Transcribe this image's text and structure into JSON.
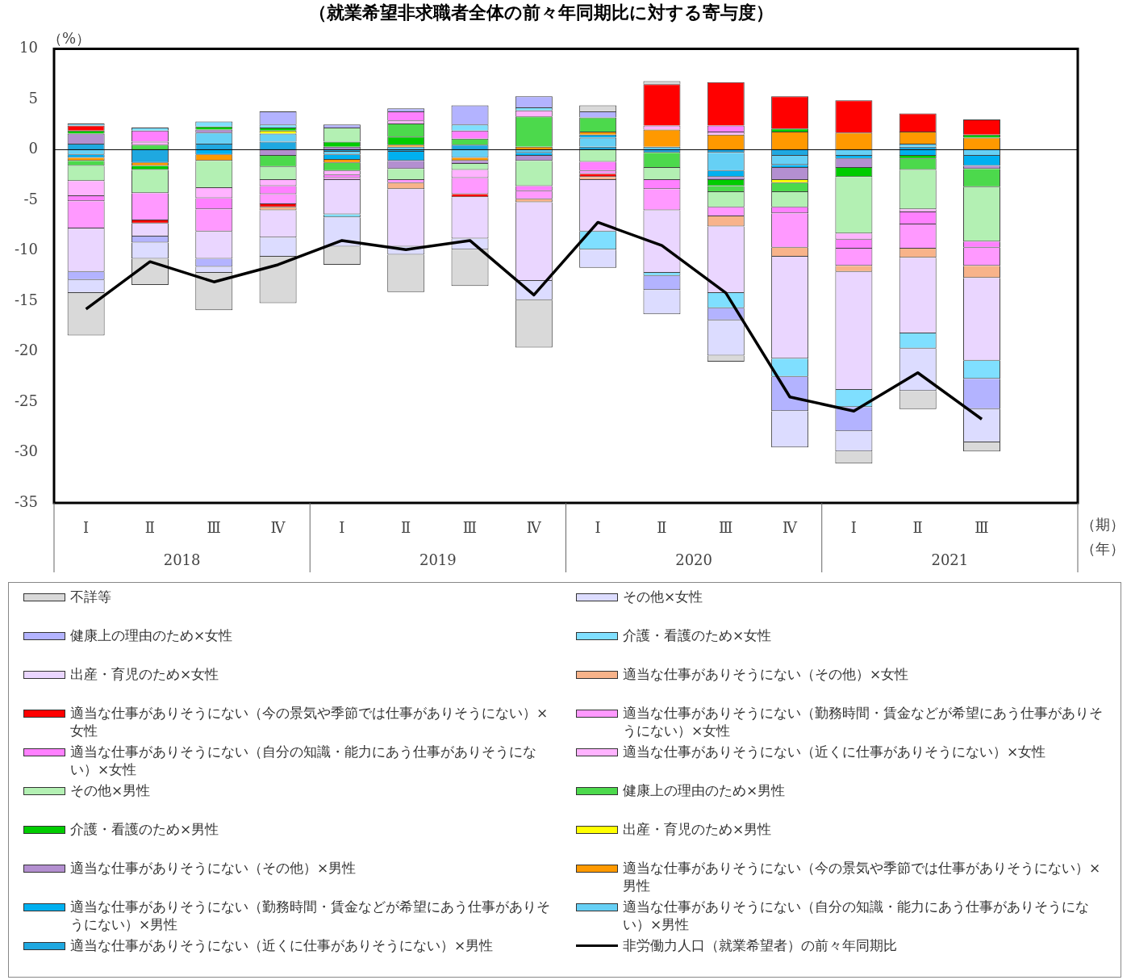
{
  "chart_data": {
    "type": "bar",
    "title": "（就業希望非求職者全体の前々年同期比に対する寄与度）",
    "ylabel": "（%）",
    "xlabel": "（期）（年）",
    "annotations": [
      "2018",
      "2019",
      "2020",
      "2021"
    ],
    "categories": [
      "Ⅰ",
      "Ⅱ",
      "Ⅲ",
      "Ⅳ",
      "Ⅰ",
      "Ⅱ",
      "Ⅲ",
      "Ⅳ",
      "Ⅰ",
      "Ⅱ",
      "Ⅲ",
      "Ⅳ",
      "Ⅰ",
      "Ⅱ",
      "Ⅲ",
      null
    ],
    "stacked": true,
    "ylim": [
      -35,
      10
    ],
    "yticks": [
      -35,
      -30,
      -25,
      -20,
      -15,
      -10,
      -5,
      0,
      5,
      10
    ],
    "grid": false,
    "legend": "bottom",
    "ref_lines": [
      {
        "axis": "y",
        "value": 0,
        "color": "#000000"
      }
    ],
    "series": [
      {
        "name": "適当な仕事がありそうにない（近くに仕事がありそうにない）×男性",
        "color": "#1fa8e0",
        "values": [
          0.6,
          -1.3,
          0.6,
          0.8,
          -0.2,
          -0.2,
          0.5,
          null,
          0.3,
          -0.3,
          -0.3,
          -0.6,
          null,
          0.3,
          null,
          null
        ]
      },
      {
        "name": "適当な仕事がありそうにない（自分の知識・能力にあう仕事がありそうにない）×男性",
        "color": "#66d0f5",
        "values": [
          -0.5,
          null,
          1.1,
          0.8,
          -0.3,
          0.3,
          -0.8,
          -0.3,
          0.9,
          0.3,
          -1.8,
          -0.9,
          -0.6,
          0.3,
          -0.6,
          null
        ]
      },
      {
        "name": "適当な仕事がありそうにない（勤務時間・賃金などが希望にあう仕事がありそうにない）×男性",
        "color": "#00b0f0",
        "values": [
          -0.3,
          null,
          -0.5,
          null,
          -0.5,
          -0.9,
          null,
          -0.3,
          0.3,
          null,
          -0.6,
          -0.3,
          -0.3,
          -0.6,
          -1.0,
          null
        ]
      },
      {
        "name": "適当な仕事がありそうにない（今の景気や季節では仕事がありそうにない）×男性",
        "color": "#ff9900",
        "values": [
          -0.3,
          -0.3,
          -0.6,
          null,
          -0.3,
          0.2,
          -0.3,
          0.3,
          0.3,
          1.7,
          1.5,
          1.8,
          1.7,
          1.2,
          1.2,
          null
        ]
      },
      {
        "name": "適当な仕事がありそうにない（その他）×男性",
        "color": "#b38fd0",
        "values": [
          1.0,
          null,
          0.3,
          -0.6,
          0.3,
          -0.8,
          -0.3,
          -0.5,
          null,
          null,
          -0.3,
          -1.2,
          -0.9,
          null,
          -0.3,
          null
        ]
      },
      {
        "name": "出産・育児のため×男性",
        "color": "#ffff00",
        "values": [
          null,
          null,
          null,
          0.3,
          null,
          null,
          null,
          null,
          null,
          null,
          null,
          -0.3,
          null,
          null,
          null,
          null
        ]
      },
      {
        "name": "介護・看護のため×男性",
        "color": "#00cc00",
        "values": [
          0.3,
          -0.4,
          0.3,
          0.3,
          0.5,
          0.8,
          null,
          null,
          null,
          null,
          -0.6,
          0.3,
          -0.9,
          -0.3,
          0.3,
          null
        ]
      },
      {
        "name": "健康上の理由のため×男性",
        "color": "#4cd94c",
        "values": [
          -0.5,
          0.5,
          null,
          -1.1,
          -0.8,
          1.3,
          0.6,
          3.0,
          1.4,
          -1.5,
          -0.6,
          -0.9,
          null,
          -1.1,
          -1.8,
          null
        ]
      },
      {
        "name": "その他×男性",
        "color": "#b3f0b3",
        "values": [
          -1.5,
          -2.3,
          -2.7,
          -1.3,
          1.4,
          -1.1,
          -0.6,
          -2.5,
          -1.2,
          -1.2,
          -1.5,
          -1.5,
          -5.6,
          -3.9,
          -5.4,
          null
        ]
      },
      {
        "name": "適当な仕事がありそうにない（近くに仕事がありそうにない）×女性",
        "color": "#ffb3ff",
        "values": [
          -1.5,
          0.3,
          -1.0,
          -0.6,
          -0.4,
          0.3,
          -0.8,
          0.6,
          null,
          0.4,
          0.3,
          null,
          -0.6,
          -0.3,
          null,
          null
        ]
      },
      {
        "name": "適当な仕事がありそうにない（自分の知識・能力にあう仕事がありそうにない）×女性",
        "color": "#ff80ff",
        "values": [
          -0.5,
          1.1,
          -1.1,
          -0.8,
          -0.3,
          0.9,
          0.8,
          -0.5,
          -0.9,
          -0.9,
          0.6,
          -0.6,
          -0.9,
          -1.2,
          -0.6,
          null
        ]
      },
      {
        "name": "適当な仕事がありそうにない（勤務時間・賃金などが希望にあう仕事がありそうにない）×女性",
        "color": "#ff99ff",
        "values": [
          -2.7,
          -2.7,
          -2.2,
          -1.0,
          -0.2,
          -0.3,
          -1.6,
          -0.8,
          -0.3,
          -2.1,
          -0.9,
          -3.4,
          -1.7,
          -2.4,
          -1.8,
          null
        ]
      },
      {
        "name": "適当な仕事がありそうにない（今の景気や季節では仕事がありそうにない）×女性",
        "color": "#ff0000",
        "values": [
          0.5,
          -0.3,
          null,
          -0.3,
          null,
          null,
          -0.3,
          null,
          -0.3,
          4.1,
          4.3,
          3.2,
          3.2,
          1.8,
          1.5,
          null
        ]
      },
      {
        "name": "適当な仕事がありそうにない（その他）×女性",
        "color": "#f8b38a",
        "values": [
          null,
          null,
          null,
          -0.3,
          null,
          -0.6,
          null,
          -0.3,
          -0.3,
          null,
          -1.0,
          -0.9,
          -0.6,
          -0.9,
          -1.2,
          null
        ]
      },
      {
        "name": "出産・育児のため×女性",
        "color": "#ead6ff",
        "values": [
          -4.3,
          -1.3,
          -2.7,
          -2.7,
          -3.4,
          -5.7,
          -4.1,
          -7.8,
          -5.1,
          -6.2,
          -6.6,
          -10.1,
          -11.7,
          -7.5,
          -8.2,
          null
        ]
      },
      {
        "name": "介護・看護のため×女性",
        "color": "#7fdfff",
        "values": [
          0.2,
          0.3,
          0.5,
          0.3,
          -0.3,
          null,
          0.6,
          0.3,
          -1.8,
          -0.3,
          -1.5,
          -1.8,
          -1.7,
          -1.5,
          -1.8,
          null
        ]
      },
      {
        "name": "健康上の理由のため×女性",
        "color": "#b3b3ff",
        "values": [
          -0.8,
          -0.6,
          -0.8,
          1.3,
          0.3,
          0.3,
          1.9,
          1.1,
          0.6,
          -1.4,
          -1.2,
          -3.4,
          -2.4,
          null,
          -3.0,
          null
        ]
      },
      {
        "name": "その他×女性",
        "color": "#dcdcff",
        "values": [
          -1.3,
          -1.6,
          -0.6,
          -1.9,
          -2.9,
          -0.8,
          -1.1,
          -1.9,
          -1.8,
          -2.4,
          -3.5,
          -3.6,
          -2.0,
          -4.2,
          -3.3,
          null
        ]
      },
      {
        "name": "不詳等",
        "color": "#d9d9d9",
        "values": [
          -4.2,
          -2.6,
          -3.7,
          -4.6,
          -1.8,
          -3.7,
          -3.6,
          -4.7,
          0.6,
          0.3,
          -0.6,
          null,
          -1.2,
          -1.8,
          -0.9,
          null
        ]
      },
      {
        "name": "非労働力人口（就業希望者）の前々年同期比",
        "type": "line",
        "color": "#000000",
        "values": [
          -15.8,
          -11.1,
          -13.1,
          -11.4,
          -9.0,
          -9.9,
          -9.0,
          -14.4,
          -7.2,
          -9.5,
          -14.2,
          -24.5,
          -25.9,
          -22.1,
          -26.7,
          null
        ]
      }
    ]
  }
}
